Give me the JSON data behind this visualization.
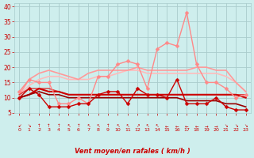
{
  "xlabel": "Vent moyen/en rafales ( km/h )",
  "ylabel_ticks": [
    5,
    10,
    15,
    20,
    25,
    30,
    35,
    40
  ],
  "xlim": [
    -0.5,
    23.5
  ],
  "ylim": [
    5,
    41
  ],
  "bg_color": "#ceeeed",
  "grid_color": "#aacccc",
  "x": [
    0,
    1,
    2,
    3,
    4,
    5,
    6,
    7,
    8,
    9,
    10,
    11,
    12,
    13,
    14,
    15,
    16,
    17,
    18,
    19,
    20,
    21,
    22,
    23
  ],
  "series": [
    {
      "comment": "light pink smooth - rafales smoothed upper band",
      "y": [
        11,
        14,
        16,
        17,
        17,
        16,
        16,
        16,
        17,
        17,
        18,
        19,
        19,
        18,
        18,
        18,
        18,
        18,
        18,
        18,
        18,
        17,
        15,
        12
      ],
      "color": "#ffbbbb",
      "lw": 1.2,
      "marker": null,
      "zorder": 2
    },
    {
      "comment": "medium pink smooth - upper band",
      "y": [
        11,
        16,
        18,
        19,
        18,
        17,
        16,
        18,
        19,
        19,
        19,
        19,
        20,
        19,
        19,
        19,
        19,
        19,
        20,
        20,
        19,
        19,
        15,
        12
      ],
      "color": "#ff9999",
      "lw": 1.2,
      "marker": null,
      "zorder": 3
    },
    {
      "comment": "salmon with markers - rafales line",
      "y": [
        12,
        16,
        15,
        15,
        8,
        8,
        10,
        8,
        17,
        17,
        21,
        22,
        21,
        13,
        26,
        28,
        27,
        38,
        21,
        15,
        15,
        13,
        10,
        11
      ],
      "color": "#ff8888",
      "lw": 1.0,
      "marker": "D",
      "ms": 2.5,
      "zorder": 6
    },
    {
      "comment": "dark red flat - mean line upper",
      "y": [
        11,
        13,
        13,
        13,
        12,
        11,
        11,
        11,
        11,
        11,
        11,
        11,
        11,
        11,
        11,
        11,
        11,
        11,
        11,
        11,
        11,
        11,
        11,
        11
      ],
      "color": "#dd3333",
      "lw": 1.0,
      "marker": null,
      "zorder": 4
    },
    {
      "comment": "dark red flat - mean line main",
      "y": [
        10,
        11,
        13,
        12,
        12,
        11,
        11,
        11,
        11,
        11,
        11,
        11,
        11,
        11,
        11,
        11,
        11,
        11,
        11,
        11,
        11,
        11,
        11,
        10
      ],
      "color": "#cc0000",
      "lw": 1.5,
      "marker": null,
      "zorder": 5
    },
    {
      "comment": "dark red dashed/solid - declining line",
      "y": [
        10,
        11,
        12,
        11,
        11,
        10,
        10,
        10,
        10,
        10,
        10,
        10,
        10,
        10,
        10,
        10,
        10,
        9,
        9,
        9,
        9,
        8,
        8,
        7
      ],
      "color": "#990000",
      "lw": 1.2,
      "marker": null,
      "zorder": 5
    },
    {
      "comment": "dark red with markers - vent moyen line",
      "y": [
        10,
        13,
        11,
        7,
        7,
        7,
        8,
        8,
        11,
        12,
        12,
        8,
        13,
        11,
        11,
        10,
        16,
        8,
        8,
        8,
        10,
        7,
        6,
        6
      ],
      "color": "#cc0000",
      "lw": 1.0,
      "marker": "D",
      "ms": 2.5,
      "zorder": 7
    }
  ],
  "arrow_chars": [
    "↙",
    "↘",
    "↑",
    "↑",
    "↑",
    "↖",
    "↑",
    "↖",
    "↖",
    "↑",
    "↖",
    "↖",
    "↗",
    "↖",
    "↖",
    "←",
    "←",
    "←",
    "←",
    "→",
    "→",
    "↘",
    "↘",
    "↘"
  ],
  "tick_color": "#cc0000",
  "label_color": "#cc0000"
}
